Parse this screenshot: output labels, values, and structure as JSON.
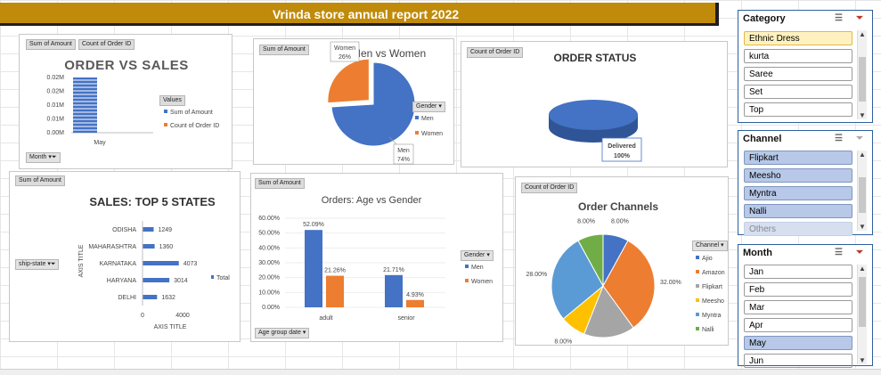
{
  "report_title": "Vrinda store annual report 2022",
  "pivot_tags": {
    "sum_of_amount": "Sum of Amount",
    "count_of_order_id": "Count of Order ID",
    "count_of_order_id_short": "Count of Order ID"
  },
  "order_vs_sales": {
    "title": "ORDER VS SALES",
    "filter_label": "Month",
    "legend_title": "Values",
    "legend": [
      "Sum of Amount",
      "Count of Order ID"
    ],
    "yticks": [
      "0.02M",
      "0.02M",
      "0.01M",
      "0.01M",
      "0.00M"
    ],
    "xcat": "May"
  },
  "men_vs_women": {
    "title": "Men vs Women",
    "legend_filter": "Gender",
    "legend": [
      "Men",
      "Women"
    ],
    "labels": [
      {
        "name": "Women",
        "pct": "26%"
      },
      {
        "name": "Men",
        "pct": "74%"
      }
    ]
  },
  "order_status": {
    "title": "ORDER STATUS",
    "label_name": "Delivered",
    "label_pct": "100%"
  },
  "top_states": {
    "title": "SALES: TOP 5 STATES",
    "filter_label": "ship-state",
    "y_axis_title": "AXIS TITLE",
    "x_axis_title": "AXIS TITLE",
    "legend": "Total",
    "xticks": [
      "0",
      "4000"
    ]
  },
  "age_gender": {
    "title": "Orders: Age vs Gender",
    "legend_filter": "Gender",
    "legend": [
      "Men",
      "Women"
    ],
    "filter_label": "Age group date",
    "yticks": [
      "60.00%",
      "50.00%",
      "40.00%",
      "30.00%",
      "20.00%",
      "10.00%",
      "0.00%"
    ]
  },
  "order_channels": {
    "title": "Order Channels",
    "legend_filter": "Channel",
    "legend": [
      "Ajio",
      "Amazon",
      "Flipkart",
      "Meesho",
      "Myntra",
      "Nalli"
    ]
  },
  "slicers": {
    "category": {
      "title": "Category",
      "items": [
        "Ethnic Dress",
        "kurta",
        "Saree",
        "Set",
        "Top"
      ]
    },
    "channel": {
      "title": "Channel",
      "items": [
        "Flipkart",
        "Meesho",
        "Myntra",
        "Nalli",
        "Others"
      ]
    },
    "month": {
      "title": "Month",
      "items": [
        "Jan",
        "Feb",
        "Mar",
        "Apr",
        "May",
        "Jun"
      ]
    }
  },
  "colors": {
    "blue": "#4472c4",
    "orange": "#ed7d31",
    "gray": "#a5a5a5",
    "yellow": "#ffc000",
    "lightblue": "#5b9bd5",
    "green": "#70ad47",
    "banner": "#c08a0a"
  },
  "chart_data": [
    {
      "type": "bar",
      "title": "ORDER VS SALES",
      "categories": [
        "May"
      ],
      "series": [
        {
          "name": "Sum of Amount",
          "values": [
            0.025
          ]
        },
        {
          "name": "Count of Order ID",
          "values": [
            0
          ]
        }
      ],
      "ylabel": "",
      "ylim": [
        0,
        0.025
      ]
    },
    {
      "type": "pie",
      "title": "Men vs Women",
      "categories": [
        "Men",
        "Women"
      ],
      "values": [
        74,
        26
      ]
    },
    {
      "type": "pie",
      "title": "ORDER STATUS",
      "categories": [
        "Delivered"
      ],
      "values": [
        100
      ]
    },
    {
      "type": "bar",
      "title": "SALES: TOP 5 STATES",
      "orientation": "horizontal",
      "categories": [
        "ODISHA",
        "MAHARASHTRA",
        "KARNATAKA",
        "HARYANA",
        "DELHI"
      ],
      "series": [
        {
          "name": "Total",
          "values": [
            1249,
            1360,
            4073,
            3014,
            1632
          ]
        }
      ],
      "xlabel": "AXIS TITLE",
      "ylabel": "AXIS TITLE",
      "xlim": [
        0,
        4000
      ]
    },
    {
      "type": "bar",
      "title": "Orders: Age vs Gender",
      "categories": [
        "adult",
        "senior"
      ],
      "series": [
        {
          "name": "Men",
          "values": [
            52.09,
            21.71
          ]
        },
        {
          "name": "Women",
          "values": [
            21.26,
            4.93
          ]
        }
      ],
      "value_labels": [
        [
          "52.09%",
          "21.71%"
        ],
        [
          "21.26%",
          "4.93%"
        ]
      ],
      "ylim": [
        0,
        60
      ]
    },
    {
      "type": "pie",
      "title": "Order Channels",
      "categories": [
        "Ajio",
        "Amazon",
        "Flipkart",
        "Meesho",
        "Myntra",
        "Nalli"
      ],
      "values": [
        8,
        32,
        16,
        8,
        28,
        8
      ],
      "value_labels": [
        "8.00%",
        "32.00%",
        "16.00%",
        "8.00%",
        "28.00%",
        "8.00%"
      ]
    }
  ]
}
